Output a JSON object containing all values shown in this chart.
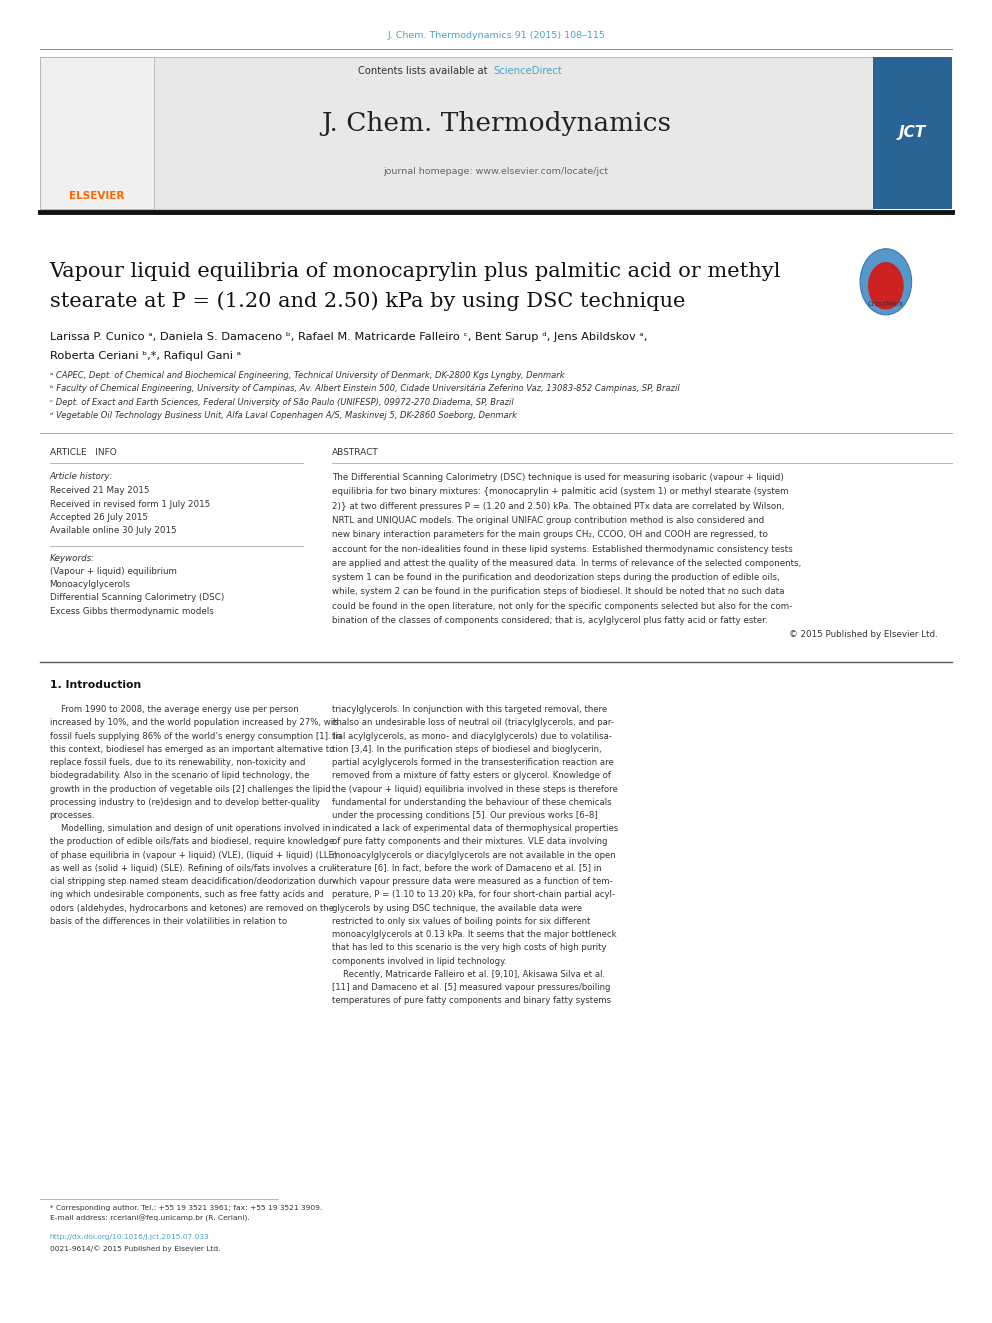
{
  "page_width": 9.92,
  "page_height": 13.23,
  "background_color": "#ffffff",
  "top_ref": "J. Chem. Thermodynamics 91 (2015) 108–115",
  "top_ref_color": "#4aa3c8",
  "journal_name": "J. Chem. Thermodynamics",
  "contents_text": "Contents lists available at ",
  "sciencedirect_text": "ScienceDirect",
  "sciencedirect_color": "#4aa3c8",
  "homepage_text": "journal homepage: www.elsevier.com/locate/jct",
  "header_bg": "#e8e8e8",
  "article_title_line1": "Vapour liquid equilibria of monocaprylin plus palmitic acid or methyl",
  "article_title_line2": "stearate at P = (1.20 and 2.50) kPa by using DSC technique",
  "affil_a": "ᵃ CAPEC, Dept. of Chemical and Biochemical Engineering, Technical University of Denmark, DK-2800 Kgs Lyngby, Denmark",
  "affil_b": "ᵇ Faculty of Chemical Engineering, University of Campinas, Av. Albert Einstein 500, Cidade Universitária Zeferino Vaz, 13083-852 Campinas, SP, Brazil",
  "affil_c": "ᶜ Dept. of Exact and Earth Sciences, Federal University of São Paulo (UNIFESP), 09972-270 Diadema, SP, Brazil",
  "affil_d": "ᵈ Vegetable Oil Technology Business Unit, Alfa Laval Copenhagen A/S, Maskinvej 5, DK-2860 Soeborg, Denmark",
  "article_info_title": "ARTICLE   INFO",
  "article_history_title": "Article history:",
  "received": "Received 21 May 2015",
  "revised": "Received in revised form 1 July 2015",
  "accepted": "Accepted 26 July 2015",
  "available": "Available online 30 July 2015",
  "keywords_title": "Keywords:",
  "kw1": "(Vapour + liquid) equilibrium",
  "kw2": "Monoacylglycerols",
  "kw3": "Differential Scanning Calorimetry (DSC)",
  "kw4": "Excess Gibbs thermodynamic models",
  "abstract_title": "ABSTRACT",
  "abstract_lines": [
    "The Differential Scanning Calorimetry (DSC) technique is used for measuring isobaric (vapour + liquid)",
    "equilibria for two binary mixtures: {monocaprylin + palmitic acid (system 1) or methyl stearate (system",
    "2)} at two different pressures P = (1.20 and 2.50) kPa. The obtained PTx data are correlated by Wilson,",
    "NRTL and UNIQUAC models. The original UNIFAC group contribution method is also considered and",
    "new binary interaction parameters for the main groups CH₂, CCOO, OH and COOH are regressed, to",
    "account for the non-idealities found in these lipid systems. Established thermodynamic consistency tests",
    "are applied and attest the quality of the measured data. In terms of relevance of the selected components,",
    "system 1 can be found in the purification and deodorization steps during the production of edible oils,",
    "while, system 2 can be found in the purification steps of biodiesel. It should be noted that no such data",
    "could be found in the open literature, not only for the specific components selected but also for the com-",
    "bination of the classes of components considered; that is, acylglycerol plus fatty acid or fatty ester.",
    "© 2015 Published by Elsevier Ltd."
  ],
  "intro_title": "1. Introduction",
  "intro_col1_lines": [
    "    From 1990 to 2008, the average energy use per person",
    "increased by 10%, and the world population increased by 27%, with",
    "fossil fuels supplying 86% of the world’s energy consumption [1]. In",
    "this context, biodiesel has emerged as an important alternative to",
    "replace fossil fuels, due to its renewability, non-toxicity and",
    "biodegradability. Also in the scenario of lipid technology, the",
    "growth in the production of vegetable oils [2] challenges the lipid",
    "processing industry to (re)design and to develop better-quality",
    "processes.",
    "    Modelling, simulation and design of unit operations involved in",
    "the production of edible oils/fats and biodiesel, require knowledge",
    "of phase equilibria in (vapour + liquid) (VLE), (liquid + liquid) (LLE)",
    "as well as (solid + liquid) (SLE). Refining of oils/fats involves a cru-",
    "cial stripping step named steam deacidification/deodorization dur-",
    "ing which undesirable components, such as free fatty acids and",
    "odors (aldehydes, hydrocarbons and ketones) are removed on the",
    "basis of the differences in their volatilities in relation to"
  ],
  "intro_col2_lines": [
    "triacylglycerols. In conjunction with this targeted removal, there",
    "is also an undesirable loss of neutral oil (triacylglycerols, and par-",
    "tial acylglycerols, as mono- and diacylglycerols) due to volatilisa-",
    "tion [3,4]. In the purification steps of biodiesel and bioglycerin,",
    "partial acylglycerols formed in the transesterification reaction are",
    "removed from a mixture of fatty esters or glycerol. Knowledge of",
    "the (vapour + liquid) equilibria involved in these steps is therefore",
    "fundamental for understanding the behaviour of these chemicals",
    "under the processing conditions [5]. Our previous works [6–8]",
    "indicated a lack of experimental data of thermophysical properties",
    "of pure fatty components and their mixtures. VLE data involving",
    "monoacylglycerols or diacylglycerols are not available in the open",
    "literature [6]. In fact, before the work of Damaceno et al. [5] in",
    "which vapour pressure data were measured as a function of tem-",
    "perature, P = (1.10 to 13.20) kPa, for four short-chain partial acyl-",
    "glycerols by using DSC technique, the available data were",
    "restricted to only six values of boiling points for six different",
    "monoacylglycerols at 0.13 kPa. It seems that the major bottleneck",
    "that has led to this scenario is the very high costs of high purity",
    "components involved in lipid technology.",
    "    Recently, Matricarde Falleiro et al. [9,10], Akisawa Silva et al.",
    "[11] and Damaceno et al. [5] measured vapour pressures/boiling",
    "temperatures of pure fatty components and binary fatty systems"
  ],
  "footnote_star": "* Corresponding author. Tel.: +55 19 3521 3961; fax: +55 19 3521 3909.",
  "footnote_email": "E-mail address: rceriani@feq.unicamp.br (R. Ceriani).",
  "footnote_doi": "http://dx.doi.org/10.1016/j.jct.2015.07.033",
  "footnote_issn": "0021-9614/© 2015 Published by Elsevier Ltd.",
  "link_color": "#4aa3c8",
  "elsevier_orange": "#FF6600"
}
